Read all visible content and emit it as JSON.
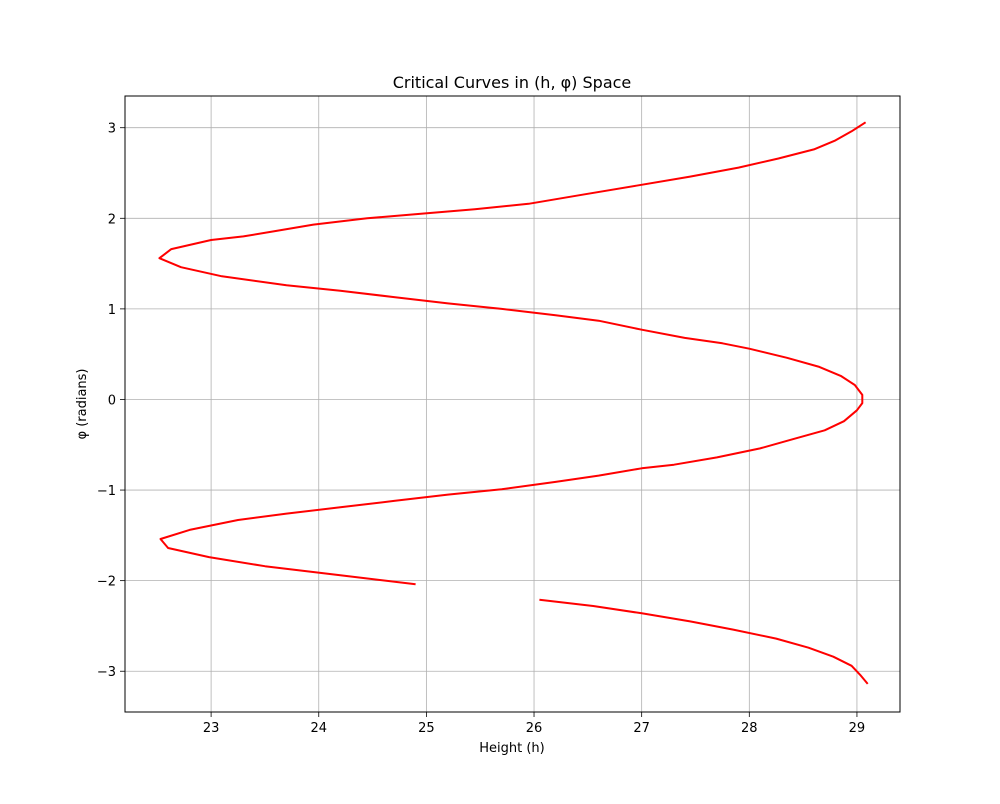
{
  "chart_data": {
    "type": "line",
    "title": "Critical Curves in (h, φ) Space",
    "xlabel": "Height (h)",
    "ylabel": "φ (radians)",
    "xlim": [
      22.2,
      29.4
    ],
    "ylim": [
      -3.45,
      3.35
    ],
    "xticks": [
      23,
      24,
      25,
      26,
      27,
      28,
      29
    ],
    "yticks": [
      3,
      2,
      1,
      0,
      -1,
      -2,
      -3
    ],
    "ytick_labels": [
      "3",
      "2",
      "1",
      "0",
      "−1",
      "−2",
      "−3"
    ],
    "grid": true,
    "series": [
      {
        "color": "#ff0000",
        "segments": [
          [
            [
              29.08,
              3.06
            ],
            [
              28.95,
              2.96
            ],
            [
              28.8,
              2.86
            ],
            [
              28.6,
              2.76
            ],
            [
              28.27,
              2.66
            ],
            [
              27.9,
              2.56
            ],
            [
              27.45,
              2.46
            ],
            [
              26.95,
              2.36
            ],
            [
              26.45,
              2.26
            ],
            [
              25.95,
              2.16
            ],
            [
              25.45,
              2.1
            ],
            [
              24.95,
              2.05
            ],
            [
              24.45,
              2.0
            ],
            [
              23.95,
              1.93
            ],
            [
              23.6,
              1.86
            ],
            [
              23.3,
              1.8
            ],
            [
              23.0,
              1.76
            ],
            [
              22.63,
              1.66
            ],
            [
              22.52,
              1.56
            ],
            [
              22.72,
              1.46
            ],
            [
              23.1,
              1.36
            ],
            [
              23.7,
              1.26
            ],
            [
              24.2,
              1.2
            ],
            [
              24.7,
              1.13
            ],
            [
              25.2,
              1.06
            ],
            [
              25.7,
              1.0
            ],
            [
              26.2,
              0.93
            ],
            [
              26.6,
              0.87
            ],
            [
              27.0,
              0.77
            ],
            [
              27.4,
              0.68
            ],
            [
              27.75,
              0.62
            ],
            [
              28.0,
              0.56
            ],
            [
              28.35,
              0.46
            ],
            [
              28.65,
              0.36
            ],
            [
              28.85,
              0.26
            ],
            [
              28.98,
              0.16
            ],
            [
              29.05,
              0.05
            ],
            [
              29.05,
              -0.04
            ],
            [
              29.0,
              -0.12
            ],
            [
              28.88,
              -0.24
            ],
            [
              28.7,
              -0.34
            ],
            [
              28.4,
              -0.44
            ],
            [
              28.1,
              -0.54
            ],
            [
              27.7,
              -0.64
            ],
            [
              27.3,
              -0.72
            ],
            [
              27.0,
              -0.76
            ],
            [
              26.6,
              -0.84
            ],
            [
              26.2,
              -0.91
            ],
            [
              25.7,
              -0.99
            ],
            [
              25.2,
              -1.05
            ],
            [
              24.7,
              -1.12
            ],
            [
              24.2,
              -1.19
            ],
            [
              23.7,
              -1.26
            ],
            [
              23.25,
              -1.33
            ],
            [
              22.8,
              -1.44
            ],
            [
              22.53,
              -1.54
            ],
            [
              22.6,
              -1.64
            ],
            [
              22.98,
              -1.74
            ],
            [
              23.5,
              -1.84
            ],
            [
              24.2,
              -1.94
            ],
            [
              24.9,
              -2.04
            ]
          ],
          [
            [
              26.05,
              -2.21
            ],
            [
              26.55,
              -2.28
            ],
            [
              27.0,
              -2.36
            ],
            [
              27.45,
              -2.45
            ],
            [
              27.85,
              -2.54
            ],
            [
              28.25,
              -2.64
            ],
            [
              28.55,
              -2.74
            ],
            [
              28.78,
              -2.84
            ],
            [
              28.95,
              -2.94
            ],
            [
              29.03,
              -3.04
            ],
            [
              29.1,
              -3.14
            ]
          ]
        ]
      }
    ]
  }
}
